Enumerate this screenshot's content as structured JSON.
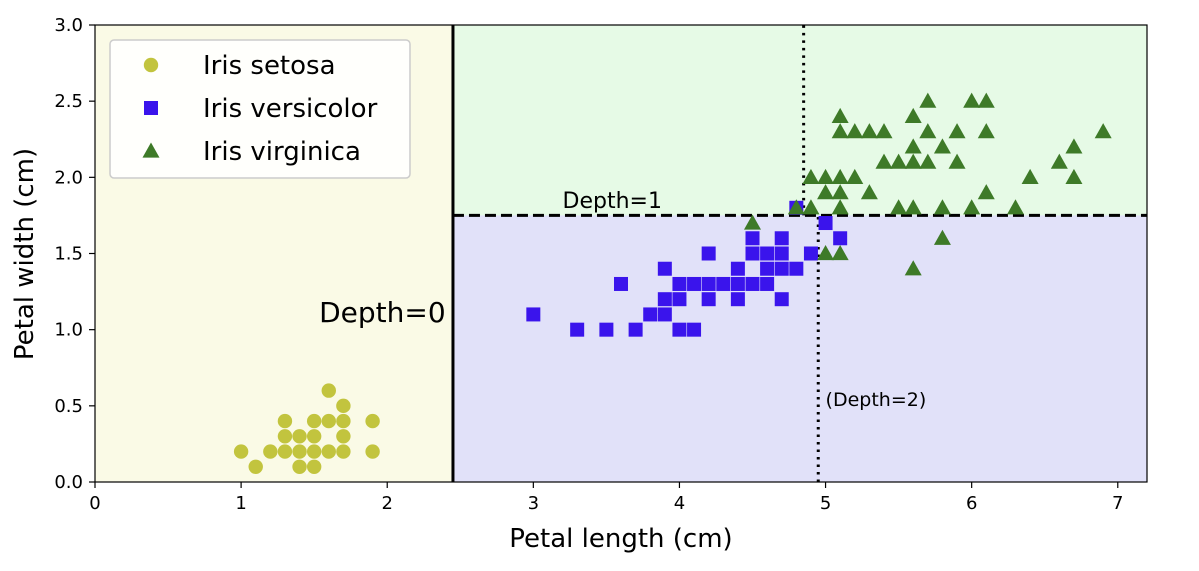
{
  "chart_data": {
    "type": "scatter",
    "xlabel": "Petal length (cm)",
    "ylabel": "Petal width (cm)",
    "xlim": [
      0,
      7.2
    ],
    "ylim": [
      0,
      3.0
    ],
    "xticks": [
      0,
      1,
      2,
      3,
      4,
      5,
      6,
      7
    ],
    "yticks": [
      0.0,
      0.5,
      1.0,
      1.5,
      2.0,
      2.5,
      3.0
    ],
    "xtick_labels": [
      "0",
      "1",
      "2",
      "3",
      "4",
      "5",
      "6",
      "7"
    ],
    "ytick_labels": [
      "0.0",
      "0.5",
      "1.0",
      "1.5",
      "2.0",
      "2.5",
      "3.0"
    ],
    "grid": false,
    "legend_position": "top-left",
    "regions": [
      {
        "xrange": [
          0,
          2.45
        ],
        "yrange": [
          0,
          3.0
        ],
        "color": "#fafae6"
      },
      {
        "xrange": [
          2.45,
          7.2
        ],
        "yrange": [
          1.75,
          3.0
        ],
        "color": "#e6fae6"
      },
      {
        "xrange": [
          2.45,
          7.2
        ],
        "yrange": [
          0,
          1.75
        ],
        "color": "#e1e1f9"
      }
    ],
    "boundaries": [
      {
        "label": "Depth=0",
        "orientation": "vertical",
        "x": 2.45,
        "y_range": [
          0,
          3.0
        ],
        "style": "solid"
      },
      {
        "label": "Depth=1",
        "orientation": "horizontal",
        "y": 1.75,
        "x_range": [
          2.45,
          7.2
        ],
        "style": "dashed"
      },
      {
        "label": "(Depth=2)",
        "orientation": "vertical",
        "x": 4.95,
        "y_range": [
          0,
          1.75
        ],
        "style": "dotted"
      },
      {
        "label": "",
        "orientation": "vertical",
        "x": 4.85,
        "y_range": [
          1.75,
          3.0
        ],
        "style": "dotted"
      }
    ],
    "annotations": [
      {
        "text": "Depth=0",
        "x": 2.4,
        "y": 1.05
      },
      {
        "text": "Depth=1",
        "x": 3.2,
        "y": 1.8
      },
      {
        "text": "(Depth=2)",
        "x": 5.0,
        "y": 0.5
      }
    ],
    "series": [
      {
        "name": "Iris setosa",
        "marker": "circle",
        "color": "#c2c43e",
        "points": [
          [
            1.0,
            0.2
          ],
          [
            1.1,
            0.1
          ],
          [
            1.2,
            0.2
          ],
          [
            1.3,
            0.2
          ],
          [
            1.3,
            0.3
          ],
          [
            1.3,
            0.4
          ],
          [
            1.4,
            0.1
          ],
          [
            1.4,
            0.2
          ],
          [
            1.4,
            0.3
          ],
          [
            1.5,
            0.1
          ],
          [
            1.5,
            0.2
          ],
          [
            1.5,
            0.3
          ],
          [
            1.5,
            0.4
          ],
          [
            1.6,
            0.2
          ],
          [
            1.6,
            0.4
          ],
          [
            1.6,
            0.6
          ],
          [
            1.7,
            0.2
          ],
          [
            1.7,
            0.3
          ],
          [
            1.7,
            0.4
          ],
          [
            1.7,
            0.5
          ],
          [
            1.9,
            0.2
          ],
          [
            1.9,
            0.4
          ]
        ]
      },
      {
        "name": "Iris versicolor",
        "marker": "square",
        "color": "#3a14ec",
        "points": [
          [
            3.0,
            1.1
          ],
          [
            3.3,
            1.0
          ],
          [
            3.5,
            1.0
          ],
          [
            3.6,
            1.3
          ],
          [
            3.7,
            1.0
          ],
          [
            3.8,
            1.1
          ],
          [
            3.9,
            1.1
          ],
          [
            3.9,
            1.2
          ],
          [
            3.9,
            1.4
          ],
          [
            4.0,
            1.0
          ],
          [
            4.0,
            1.2
          ],
          [
            4.0,
            1.3
          ],
          [
            4.1,
            1.0
          ],
          [
            4.1,
            1.3
          ],
          [
            4.2,
            1.2
          ],
          [
            4.2,
            1.3
          ],
          [
            4.2,
            1.5
          ],
          [
            4.3,
            1.3
          ],
          [
            4.4,
            1.2
          ],
          [
            4.4,
            1.3
          ],
          [
            4.4,
            1.4
          ],
          [
            4.5,
            1.3
          ],
          [
            4.5,
            1.5
          ],
          [
            4.5,
            1.6
          ],
          [
            4.6,
            1.3
          ],
          [
            4.6,
            1.4
          ],
          [
            4.6,
            1.5
          ],
          [
            4.7,
            1.2
          ],
          [
            4.7,
            1.4
          ],
          [
            4.7,
            1.5
          ],
          [
            4.7,
            1.6
          ],
          [
            4.8,
            1.4
          ],
          [
            4.8,
            1.8
          ],
          [
            4.9,
            1.5
          ],
          [
            5.0,
            1.7
          ],
          [
            5.1,
            1.6
          ]
        ]
      },
      {
        "name": "Iris virginica",
        "marker": "triangle",
        "color": "#3e7a28",
        "points": [
          [
            4.5,
            1.7
          ],
          [
            4.8,
            1.8
          ],
          [
            4.9,
            1.8
          ],
          [
            4.9,
            2.0
          ],
          [
            5.0,
            1.5
          ],
          [
            5.0,
            1.9
          ],
          [
            5.0,
            2.0
          ],
          [
            5.1,
            1.5
          ],
          [
            5.1,
            1.8
          ],
          [
            5.1,
            1.9
          ],
          [
            5.1,
            2.0
          ],
          [
            5.1,
            2.3
          ],
          [
            5.1,
            2.4
          ],
          [
            5.2,
            2.0
          ],
          [
            5.2,
            2.3
          ],
          [
            5.3,
            1.9
          ],
          [
            5.3,
            2.3
          ],
          [
            5.4,
            2.1
          ],
          [
            5.4,
            2.3
          ],
          [
            5.5,
            1.8
          ],
          [
            5.5,
            2.1
          ],
          [
            5.6,
            1.4
          ],
          [
            5.6,
            1.8
          ],
          [
            5.6,
            2.1
          ],
          [
            5.6,
            2.2
          ],
          [
            5.6,
            2.4
          ],
          [
            5.7,
            2.1
          ],
          [
            5.7,
            2.3
          ],
          [
            5.7,
            2.5
          ],
          [
            5.8,
            1.6
          ],
          [
            5.8,
            1.8
          ],
          [
            5.8,
            2.2
          ],
          [
            5.9,
            2.1
          ],
          [
            5.9,
            2.3
          ],
          [
            6.0,
            1.8
          ],
          [
            6.0,
            2.5
          ],
          [
            6.1,
            1.9
          ],
          [
            6.1,
            2.3
          ],
          [
            6.1,
            2.5
          ],
          [
            6.3,
            1.8
          ],
          [
            6.4,
            2.0
          ],
          [
            6.6,
            2.1
          ],
          [
            6.7,
            2.0
          ],
          [
            6.7,
            2.2
          ],
          [
            6.9,
            2.3
          ]
        ]
      }
    ]
  }
}
